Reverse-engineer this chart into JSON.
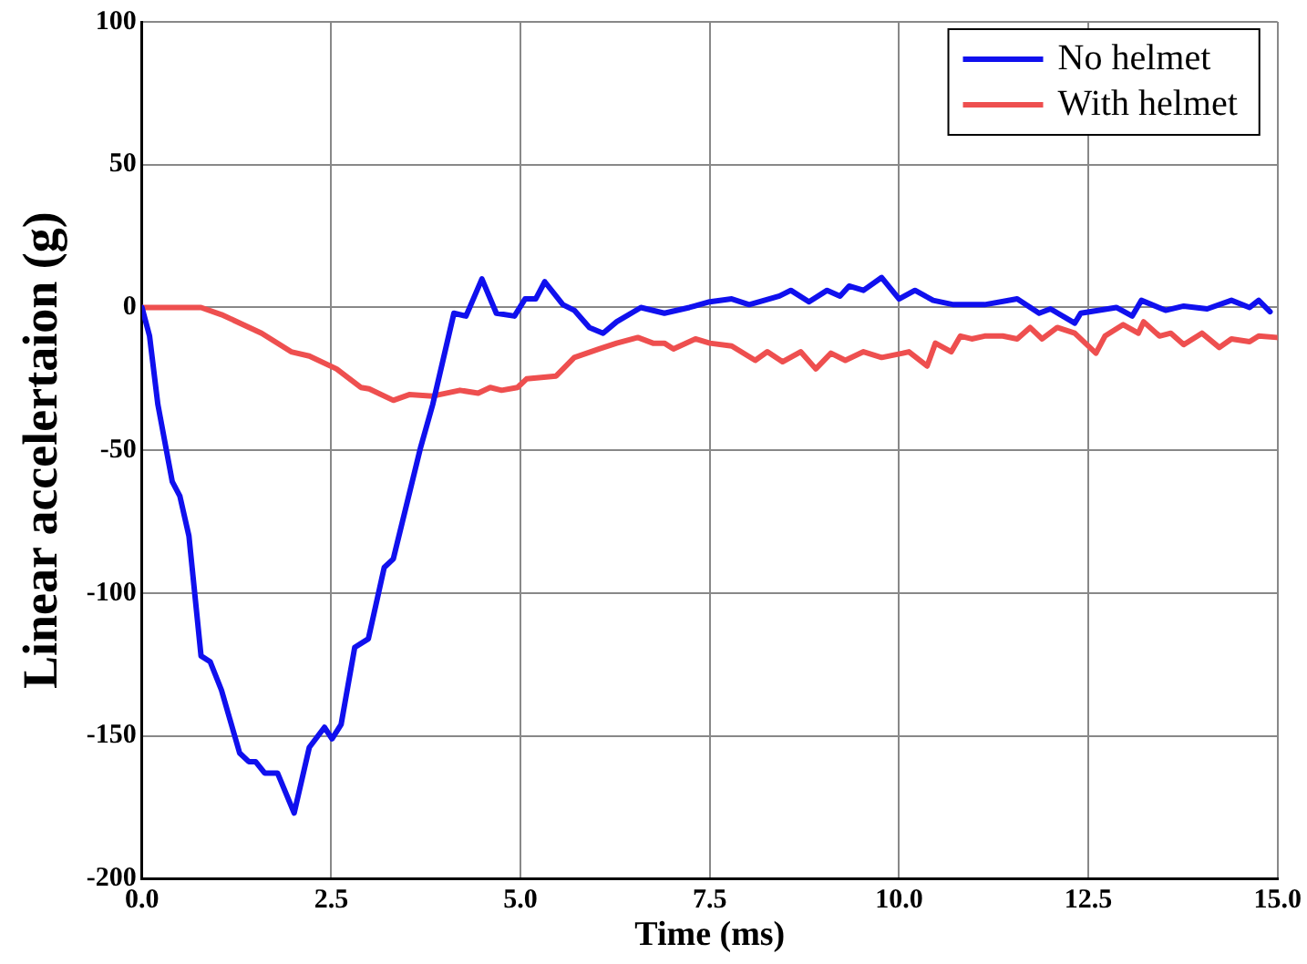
{
  "chart_data": {
    "type": "line",
    "xlabel": "Time (ms)",
    "ylabel": "Linear accelertaion (g)",
    "xlim": [
      0,
      15
    ],
    "xticks": [
      {
        "value": 0,
        "label": "0.0"
      },
      {
        "value": 2.5,
        "label": "2.5"
      },
      {
        "value": 5,
        "label": "5.0"
      },
      {
        "value": 7.5,
        "label": "7.5"
      },
      {
        "value": 10,
        "label": "10.0"
      },
      {
        "value": 12.5,
        "label": "12.5"
      },
      {
        "value": 15,
        "label": "15.0"
      }
    ],
    "ylim": [
      -200,
      100
    ],
    "yticks": [
      -200,
      -150,
      -100,
      -50,
      0,
      50,
      100
    ],
    "grid": true,
    "legend": "top right",
    "marker": "none",
    "line_style": "solid",
    "series": [
      {
        "name": "No helmet",
        "color": "#1010ee",
        "x": [
          0,
          0.1,
          0.21,
          0.4,
          0.5,
          0.62,
          0.78,
          0.9,
          1.05,
          1.29,
          1.41,
          1.5,
          1.62,
          1.79,
          2.01,
          2.21,
          2.41,
          2.51,
          2.63,
          2.81,
          2.99,
          3.2,
          3.32,
          3.68,
          3.84,
          4.12,
          4.28,
          4.49,
          4.68,
          4.92,
          5.06,
          5.2,
          5.32,
          5.56,
          5.71,
          5.91,
          6.09,
          6.27,
          6.59,
          6.9,
          7.23,
          7.5,
          7.79,
          8.02,
          8.42,
          8.57,
          8.81,
          9.05,
          9.22,
          9.34,
          9.53,
          9.77,
          10.0,
          10.21,
          10.45,
          10.72,
          11.13,
          11.56,
          11.85,
          12.0,
          12.32,
          12.4,
          12.87,
          13.08,
          13.2,
          13.52,
          13.76,
          14.07,
          14.39,
          14.63,
          14.75,
          14.9
        ],
        "values": [
          0,
          -10,
          -34,
          -61,
          -66,
          -80,
          -122,
          -124,
          -134,
          -156,
          -159,
          -159,
          -163,
          -163,
          -177,
          -154,
          -147,
          -151,
          -146,
          -119,
          -116,
          -91,
          -88,
          -49,
          -34,
          -2,
          -3,
          10,
          -2,
          -3,
          3,
          3,
          9,
          1,
          -1,
          -7,
          -9,
          -5,
          0,
          -2,
          0,
          2,
          3,
          1,
          4,
          6,
          2,
          6,
          4,
          7.5,
          6,
          10.5,
          3,
          6,
          2.5,
          1,
          1,
          3,
          -2,
          -0.5,
          -5.5,
          -2,
          0,
          -3,
          2.5,
          -1,
          0.5,
          -0.5,
          2.5,
          0,
          2.5,
          -1.5
        ]
      },
      {
        "name": "With helmet",
        "color": "#ee4f4f",
        "x": [
          0,
          0.78,
          1.05,
          1.58,
          1.97,
          2.21,
          2.57,
          2.89,
          3.0,
          3.32,
          3.53,
          3.84,
          4.2,
          4.44,
          4.6,
          4.75,
          4.96,
          5.08,
          5.47,
          5.71,
          6.04,
          6.27,
          6.55,
          6.75,
          6.9,
          7.02,
          7.31,
          7.5,
          7.79,
          8.1,
          8.26,
          8.46,
          8.7,
          8.9,
          9.1,
          9.29,
          9.53,
          9.77,
          10.05,
          10.13,
          10.37,
          10.48,
          10.69,
          10.81,
          10.96,
          11.13,
          11.37,
          11.56,
          11.73,
          11.89,
          12.09,
          12.32,
          12.6,
          12.72,
          12.96,
          13.16,
          13.23,
          13.44,
          13.59,
          13.76,
          14.0,
          14.23,
          14.39,
          14.63,
          14.75,
          14.99
        ],
        "values": [
          0,
          0,
          -2.5,
          -9,
          -15.5,
          -17,
          -21.5,
          -28,
          -28.5,
          -32.5,
          -30.5,
          -31,
          -29,
          -30,
          -28,
          -29,
          -28,
          -25,
          -24,
          -17.5,
          -14.5,
          -12.5,
          -10.5,
          -12.5,
          -12.5,
          -14.5,
          -11,
          -12.5,
          -13.5,
          -18.5,
          -15.5,
          -19,
          -15.5,
          -21.5,
          -16,
          -18.5,
          -15.5,
          -17.5,
          -16,
          -15.5,
          -20.5,
          -12.5,
          -15.5,
          -10,
          -11,
          -10,
          -10,
          -11,
          -7,
          -11,
          -7,
          -9,
          -16,
          -10,
          -6,
          -9,
          -5,
          -10,
          -9,
          -13,
          -9,
          -14,
          -11,
          -12,
          -10,
          -10.5
        ]
      }
    ]
  }
}
